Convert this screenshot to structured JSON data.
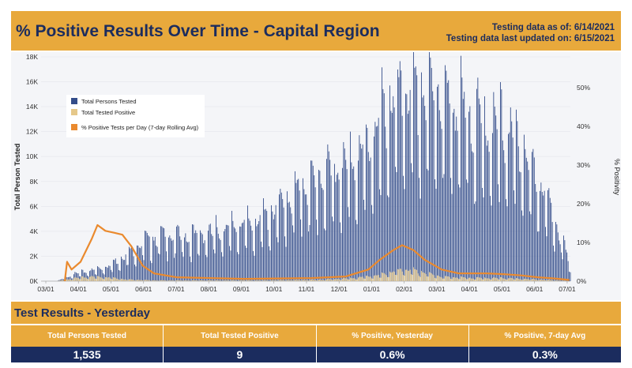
{
  "header": {
    "title": "% Positive Results Over Time - Capital Region",
    "as_of": "Testing data as of: 6/14/2021",
    "updated": "Testing data last updated on: 6/15/2021"
  },
  "chart_data": {
    "type": "bar+line",
    "ylabel_left": "Total Person Tested",
    "ylabel_right": "% Positivity",
    "y_left_ticks": [
      "0K",
      "2K",
      "4K",
      "6K",
      "8K",
      "10K",
      "12K",
      "14K",
      "16K",
      "18K"
    ],
    "y_left_max": 18000,
    "y_right_ticks": [
      "0%",
      "10%",
      "20%",
      "30%",
      "40%",
      "50%"
    ],
    "y_right_max": 0.58,
    "x_ticks": [
      "03/01",
      "04/01",
      "05/01",
      "06/01",
      "07/01",
      "08/01",
      "09/01",
      "10/01",
      "11/01",
      "12/01",
      "01/01",
      "02/01",
      "03/01",
      "04/01",
      "05/01",
      "06/01",
      "07/01"
    ],
    "legend": [
      "Total Persons Tested",
      "Total Tested Positive",
      "% Positive Tests per Day (7-day Rolling Avg)"
    ],
    "legend_position": "top-left",
    "colors": {
      "tested": "#344d8a",
      "positive": "#e5c88a",
      "rate": "#ea8a2e"
    },
    "day_range": [
      0,
      469
    ],
    "tested_series": [
      {
        "day": 14,
        "value": 0
      },
      {
        "day": 30,
        "value": 600
      },
      {
        "day": 45,
        "value": 900
      },
      {
        "day": 60,
        "value": 1300
      },
      {
        "day": 75,
        "value": 2200
      },
      {
        "day": 90,
        "value": 3300
      },
      {
        "day": 110,
        "value": 3900
      },
      {
        "day": 130,
        "value": 3700
      },
      {
        "day": 150,
        "value": 4000
      },
      {
        "day": 170,
        "value": 4600
      },
      {
        "day": 190,
        "value": 4900
      },
      {
        "day": 210,
        "value": 6000
      },
      {
        "day": 230,
        "value": 7800
      },
      {
        "day": 250,
        "value": 8700
      },
      {
        "day": 270,
        "value": 9700
      },
      {
        "day": 290,
        "value": 11100
      },
      {
        "day": 305,
        "value": 14000
      },
      {
        "day": 320,
        "value": 15600
      },
      {
        "day": 335,
        "value": 15200
      },
      {
        "day": 350,
        "value": 15900
      },
      {
        "day": 365,
        "value": 14600
      },
      {
        "day": 380,
        "value": 13600
      },
      {
        "day": 395,
        "value": 12900
      },
      {
        "day": 410,
        "value": 12700
      },
      {
        "day": 425,
        "value": 11300
      },
      {
        "day": 440,
        "value": 8400
      },
      {
        "day": 455,
        "value": 5300
      },
      {
        "day": 468,
        "value": 1535
      }
    ],
    "positive_series": [
      {
        "day": 14,
        "value": 0
      },
      {
        "day": 30,
        "value": 250
      },
      {
        "day": 45,
        "value": 380
      },
      {
        "day": 60,
        "value": 330
      },
      {
        "day": 75,
        "value": 150
      },
      {
        "day": 100,
        "value": 60
      },
      {
        "day": 200,
        "value": 60
      },
      {
        "day": 250,
        "value": 120
      },
      {
        "day": 275,
        "value": 250
      },
      {
        "day": 300,
        "value": 500
      },
      {
        "day": 315,
        "value": 850
      },
      {
        "day": 325,
        "value": 960
      },
      {
        "day": 340,
        "value": 700
      },
      {
        "day": 355,
        "value": 380
      },
      {
        "day": 380,
        "value": 270
      },
      {
        "day": 410,
        "value": 260
      },
      {
        "day": 440,
        "value": 140
      },
      {
        "day": 468,
        "value": 9
      }
    ],
    "rate_series": [
      {
        "day": 21,
        "value": 0.0
      },
      {
        "day": 23,
        "value": 0.05
      },
      {
        "day": 27,
        "value": 0.03
      },
      {
        "day": 35,
        "value": 0.05
      },
      {
        "day": 45,
        "value": 0.11
      },
      {
        "day": 50,
        "value": 0.145
      },
      {
        "day": 57,
        "value": 0.13
      },
      {
        "day": 65,
        "value": 0.125
      },
      {
        "day": 72,
        "value": 0.12
      },
      {
        "day": 80,
        "value": 0.09
      },
      {
        "day": 90,
        "value": 0.04
      },
      {
        "day": 100,
        "value": 0.02
      },
      {
        "day": 120,
        "value": 0.01
      },
      {
        "day": 180,
        "value": 0.006
      },
      {
        "day": 240,
        "value": 0.008
      },
      {
        "day": 270,
        "value": 0.012
      },
      {
        "day": 290,
        "value": 0.03
      },
      {
        "day": 300,
        "value": 0.055
      },
      {
        "day": 312,
        "value": 0.08
      },
      {
        "day": 320,
        "value": 0.093
      },
      {
        "day": 330,
        "value": 0.08
      },
      {
        "day": 340,
        "value": 0.055
      },
      {
        "day": 355,
        "value": 0.03
      },
      {
        "day": 370,
        "value": 0.02
      },
      {
        "day": 395,
        "value": 0.02
      },
      {
        "day": 410,
        "value": 0.018
      },
      {
        "day": 425,
        "value": 0.015
      },
      {
        "day": 440,
        "value": 0.01
      },
      {
        "day": 455,
        "value": 0.007
      },
      {
        "day": 468,
        "value": 0.003
      }
    ]
  },
  "results": {
    "title": "Test Results - Yesterday",
    "headers": [
      "Total Persons Tested",
      "Total Tested Positive",
      "% Positive, Yesterday",
      "% Positive, 7-day Avg"
    ],
    "values": [
      "1,535",
      "9",
      "0.6%",
      "0.3%"
    ]
  }
}
